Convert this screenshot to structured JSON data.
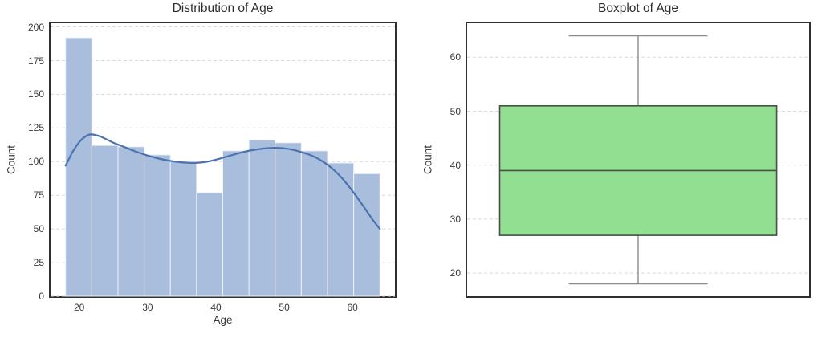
{
  "figure": {
    "background": "#ffffff"
  },
  "chart_data": [
    {
      "type": "bar",
      "subtype": "histogram-with-kde",
      "title": "Distribution of Age",
      "xlabel": "Age",
      "ylabel": "Count",
      "bin_start": 18,
      "bin_end": 64,
      "bins": 12,
      "counts": [
        192,
        112,
        111,
        105,
        100,
        77,
        108,
        116,
        114,
        108,
        99,
        91
      ],
      "kde_line": [
        [
          18,
          97
        ],
        [
          18.5,
          102
        ],
        [
          19,
          107
        ],
        [
          20,
          114.5
        ],
        [
          21,
          119
        ],
        [
          21.8,
          120.2
        ],
        [
          23,
          118.8
        ],
        [
          24,
          116.5
        ],
        [
          25,
          114
        ],
        [
          26.5,
          111
        ],
        [
          28,
          108
        ],
        [
          30,
          104.5
        ],
        [
          32,
          101.8
        ],
        [
          34,
          100
        ],
        [
          36,
          99.1
        ],
        [
          37.5,
          99.2
        ],
        [
          39,
          100.2
        ],
        [
          41,
          102.8
        ],
        [
          43,
          105.8
        ],
        [
          45,
          108.2
        ],
        [
          47,
          109.7
        ],
        [
          48.8,
          110.2
        ],
        [
          50.5,
          109.5
        ],
        [
          52,
          107.8
        ],
        [
          54,
          104.5
        ],
        [
          55.5,
          100.5
        ],
        [
          57,
          95
        ],
        [
          58.5,
          87.5
        ],
        [
          60,
          78
        ],
        [
          61.5,
          67.5
        ],
        [
          63,
          56.5
        ],
        [
          64,
          50
        ]
      ],
      "xticks": [
        20,
        30,
        40,
        50,
        60
      ],
      "yticks": [
        0,
        25,
        50,
        75,
        100,
        125,
        150,
        175,
        200
      ],
      "xlim": [
        15.8,
        66.2
      ],
      "ylim": [
        0,
        202.7
      ],
      "grid": "horizontal-dashed",
      "legend": "none",
      "colors": {
        "bar_fill": "#a9bedd",
        "bar_edge": "#eef2f9",
        "kde_line": "#4c72b0",
        "grid": "#d9d9d9"
      }
    },
    {
      "type": "boxplot",
      "title": "Boxplot of Age",
      "xlabel": "",
      "ylabel": "Count",
      "stats": {
        "min": 18,
        "q1": 27,
        "median": 39,
        "q3": 51,
        "max": 64
      },
      "yticks": [
        20,
        30,
        40,
        50,
        60
      ],
      "ylim": [
        15.7,
        66.3
      ],
      "grid": "horizontal-dashed",
      "legend": "none",
      "box_half_frac": 0.405,
      "cap_half_frac": 0.203,
      "colors": {
        "box_fill": "#92df92",
        "box_edge": "#4d4d4d",
        "median": "#4d4d4d",
        "whisker": "#8c8c8c",
        "grid": "#d9d9d9"
      }
    }
  ]
}
